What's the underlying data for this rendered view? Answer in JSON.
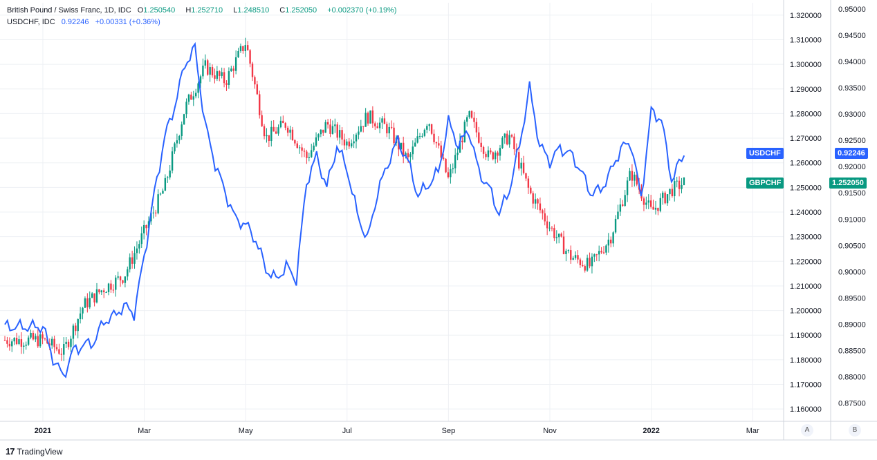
{
  "legend": {
    "main_title": "British Pound / Swiss Franc, 1D, IDC",
    "o_label": "O",
    "o_value": "1.250540",
    "h_label": "H",
    "h_value": "1.252710",
    "l_label": "L",
    "l_value": "1.248510",
    "c_label": "C",
    "c_value": "1.252050",
    "change": "+0.002370 (+0.19%)",
    "compare_title": "USDCHF, IDC",
    "compare_value": "0.92246",
    "compare_change": "+0.00331 (+0.36%)"
  },
  "tags": {
    "usdchf_label": "USDCHF",
    "usdchf_value": "0.92246",
    "gbpchf_label": "GBPCHF",
    "gbpchf_value": "1.252050"
  },
  "axis_buttons": {
    "a": "A",
    "b": "B"
  },
  "brand": "TradingView",
  "colors": {
    "up": "#089981",
    "down": "#f23645",
    "line": "#2962ff"
  },
  "chart_data": {
    "type": "line",
    "x_ticks": [
      "2021",
      "Mar",
      "May",
      "Jul",
      "Sep",
      "Nov",
      "2022",
      "Mar"
    ],
    "y_left_ticks": [
      "1.320000",
      "1.310000",
      "1.300000",
      "1.290000",
      "1.280000",
      "1.270000",
      "1.260000",
      "1.250000",
      "1.240000",
      "1.230000",
      "1.220000",
      "1.210000",
      "1.200000",
      "1.190000",
      "1.180000",
      "1.170000",
      "1.160000"
    ],
    "y_right_ticks": [
      "0.95000",
      "0.94500",
      "0.94000",
      "0.93500",
      "0.93000",
      "0.92500",
      "0.92000",
      "0.91500",
      "0.91000",
      "0.90500",
      "0.90000",
      "0.89500",
      "0.89000",
      "0.88500",
      "0.88000",
      "0.87500"
    ],
    "series": [
      {
        "name": "GBPCHF",
        "style": "candles",
        "ylim": [
          1.155,
          1.325
        ],
        "x_months": [
          0.0,
          0.4,
          0.8,
          1.2,
          1.6,
          2.0,
          2.4,
          2.8,
          3.2,
          3.6,
          4.0,
          4.4,
          4.8,
          5.2,
          5.6,
          6.0,
          6.4,
          6.8,
          7.2,
          7.6,
          8.0,
          8.4,
          8.8,
          9.2,
          9.6,
          10.0,
          10.4,
          10.8,
          11.2,
          11.6,
          12.0,
          12.4,
          12.65
        ],
        "values": [
          1.188,
          1.183,
          1.202,
          1.209,
          1.214,
          1.232,
          1.25,
          1.282,
          1.299,
          1.293,
          1.309,
          1.27,
          1.276,
          1.262,
          1.276,
          1.268,
          1.279,
          1.274,
          1.261,
          1.278,
          1.253,
          1.279,
          1.262,
          1.271,
          1.248,
          1.234,
          1.222,
          1.218,
          1.23,
          1.256,
          1.24,
          1.249,
          1.252
        ]
      },
      {
        "name": "USDCHF",
        "style": "line",
        "ylim": [
          0.8715,
          0.9512
        ],
        "x_months": [
          0.0,
          0.2,
          0.4,
          0.6,
          0.8,
          1.0,
          1.2,
          1.4,
          1.6,
          1.8,
          2.0,
          2.2,
          2.4,
          2.6,
          2.8,
          3.0,
          3.2,
          3.4,
          3.6,
          3.8,
          4.0,
          4.2,
          4.4,
          4.6,
          4.8,
          5.0,
          5.2,
          5.4,
          5.6,
          5.8,
          6.0,
          6.2,
          6.4,
          6.6,
          6.8,
          7.0,
          7.2,
          7.4,
          7.6,
          7.8,
          8.0,
          8.2,
          8.4,
          8.6,
          8.8,
          9.0,
          9.2,
          9.4,
          9.6,
          9.8,
          10.0,
          10.2,
          10.4,
          10.6,
          10.8,
          11.0,
          11.2,
          11.4,
          11.6,
          11.8,
          12.0,
          12.2,
          12.4,
          12.65
        ],
        "values": [
          0.8895,
          0.8835,
          0.88,
          0.885,
          0.886,
          0.8865,
          0.8905,
          0.8915,
          0.8935,
          0.892,
          0.903,
          0.915,
          0.9255,
          0.9315,
          0.9395,
          0.9425,
          0.928,
          0.9205,
          0.915,
          0.91,
          0.909,
          0.906,
          0.9005,
          0.8985,
          0.901,
          0.8985,
          0.917,
          0.922,
          0.916,
          0.924,
          0.9195,
          0.911,
          0.906,
          0.915,
          0.9205,
          0.925,
          0.921,
          0.9145,
          0.9165,
          0.919,
          0.9285,
          0.924,
          0.927,
          0.919,
          0.916,
          0.911,
          0.9155,
          0.924,
          0.935,
          0.924,
          0.921,
          0.9235,
          0.9225,
          0.9195,
          0.915,
          0.9155,
          0.919,
          0.9235,
          0.9245,
          0.914,
          0.9305,
          0.929,
          0.9175,
          0.9225
        ]
      }
    ]
  }
}
